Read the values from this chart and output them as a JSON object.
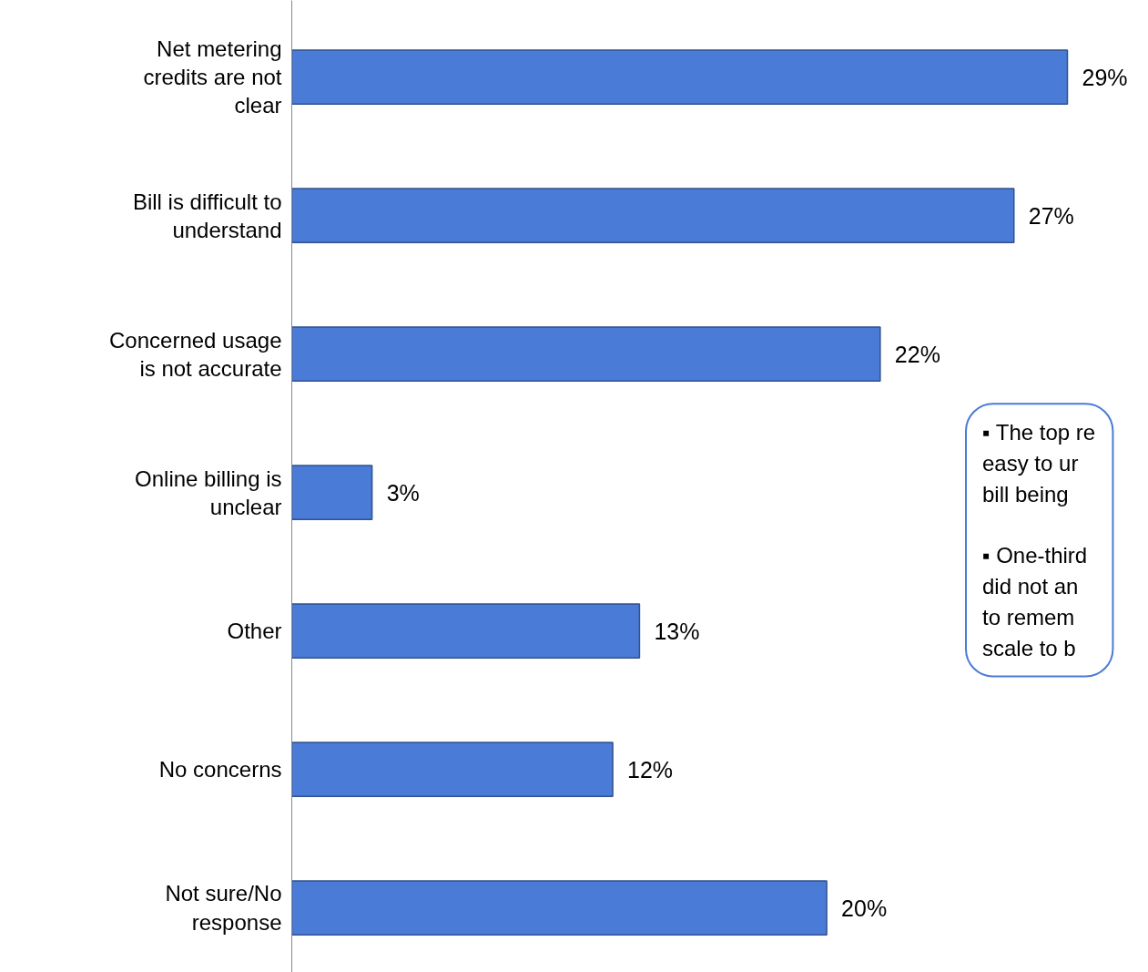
{
  "chart_data": {
    "type": "bar",
    "orientation": "horizontal",
    "categories": [
      "Net metering\ncredits are not\nclear",
      "Bill is difficult to\nunderstand",
      "Concerned usage\nis not accurate",
      "Online billing is\nunclear",
      "Other",
      "No concerns",
      "Not sure/No\nresponse"
    ],
    "values": [
      29,
      27,
      22,
      3,
      13,
      12,
      20
    ],
    "value_labels": [
      "29%",
      "27%",
      "22%",
      "3%",
      "13%",
      "12%",
      "20%"
    ],
    "color": "#4a7bd6",
    "grid": false,
    "annotations": [
      "▪ The top re\n   easy to ur\n   bill being",
      "▪ One-third\n   did not an\n   to remem\n   scale to b"
    ]
  }
}
